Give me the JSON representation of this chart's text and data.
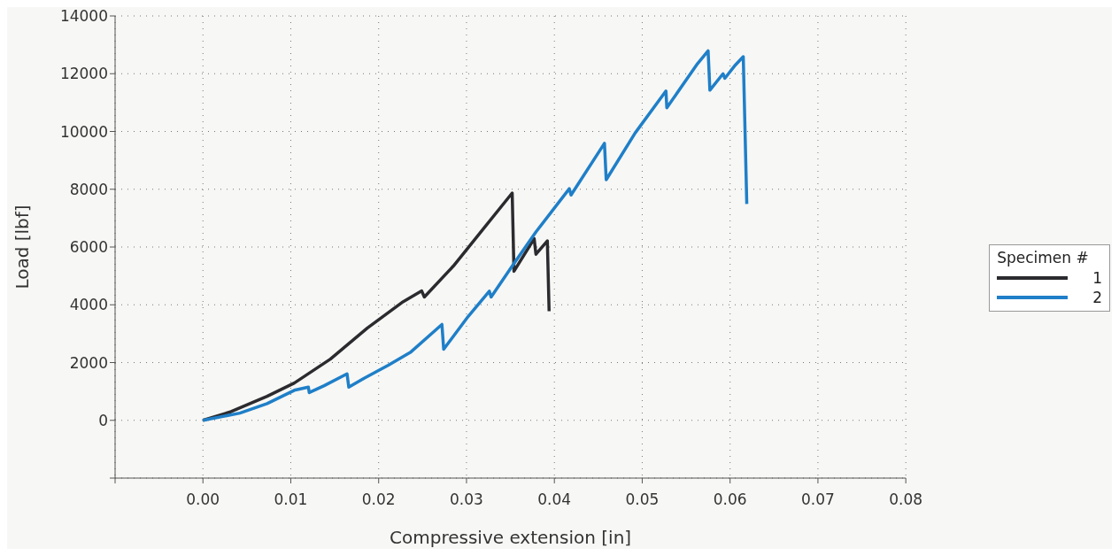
{
  "chart_data": {
    "type": "line",
    "xlabel": "Compressive extension [in]",
    "ylabel": "Load [lbf]",
    "legend_title": "Specimen #",
    "legend": "right",
    "grid": true,
    "line_style": "solid",
    "marker": "none",
    "xlim": [
      -0.01,
      0.08
    ],
    "xticks": [
      {
        "value": -0.01,
        "label": null
      },
      {
        "value": 0,
        "label": "0.00"
      },
      {
        "value": 0.01,
        "label": "0.01"
      },
      {
        "value": 0.02,
        "label": "0.02"
      },
      {
        "value": 0.03,
        "label": "0.03"
      },
      {
        "value": 0.04,
        "label": "0.04"
      },
      {
        "value": 0.05,
        "label": "0.05"
      },
      {
        "value": 0.06,
        "label": "0.06"
      },
      {
        "value": 0.07,
        "label": "0.07"
      },
      {
        "value": 0.08,
        "label": "0.08"
      }
    ],
    "ylim": [
      -2000,
      14000
    ],
    "yticks": [
      {
        "value": -2000,
        "label": null
      },
      0,
      2000,
      4000,
      6000,
      8000,
      10000,
      12000,
      14000
    ],
    "series": [
      {
        "name": "1",
        "color": "#2b2b2f",
        "x": [
          0,
          0.0032,
          0.0073,
          0.0104,
          0.0145,
          0.0187,
          0.0228,
          0.0249,
          0.0252,
          0.0285,
          0.0352,
          0.0354,
          0.0377,
          0.0379,
          0.0392,
          0.0394
        ],
        "values": [
          0,
          300,
          830,
          1290,
          2120,
          3190,
          4110,
          4480,
          4270,
          5340,
          7870,
          5160,
          6290,
          5750,
          6210,
          3780
        ]
      },
      {
        "name": "2",
        "color": "#1f7fc8",
        "x": [
          0,
          0.0042,
          0.0073,
          0.0104,
          0.012,
          0.0121,
          0.0138,
          0.0164,
          0.0166,
          0.0183,
          0.0211,
          0.0236,
          0.0272,
          0.0274,
          0.0302,
          0.0326,
          0.0328,
          0.0352,
          0.0379,
          0.0417,
          0.0419,
          0.0457,
          0.0459,
          0.0492,
          0.0527,
          0.0528,
          0.0563,
          0.0575,
          0.0577,
          0.0592,
          0.0594,
          0.0606,
          0.0615,
          0.0619
        ],
        "values": [
          0,
          250,
          580,
          1040,
          1150,
          960,
          1200,
          1610,
          1150,
          1450,
          1910,
          2350,
          3320,
          2460,
          3600,
          4470,
          4270,
          5340,
          6520,
          8020,
          7800,
          9590,
          8330,
          9950,
          11400,
          10820,
          12350,
          12790,
          11430,
          12000,
          11840,
          12300,
          12590,
          7490
        ]
      }
    ]
  }
}
